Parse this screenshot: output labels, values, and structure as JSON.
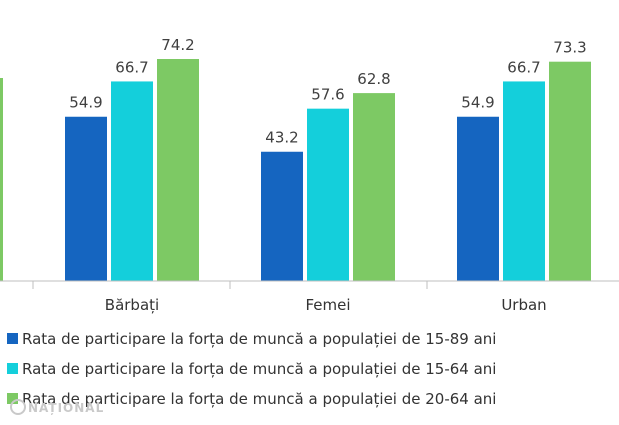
{
  "chart_data": {
    "type": "bar",
    "categories": [
      "",
      "Bărbați",
      "Femei",
      "Urban"
    ],
    "series": [
      {
        "name": "Rata de participare la forța de muncă a populației de 15-89 ani",
        "color": "#1565c0",
        "values": [
          null,
          54.9,
          43.2,
          54.9
        ]
      },
      {
        "name": "Rata de participare la forța de muncă a populației de 15-64 ani",
        "color": "#14cfdb",
        "values": [
          null,
          66.7,
          57.6,
          66.7
        ]
      },
      {
        "name": "Rata de participare la forța de muncă a populației de 20-64 ani",
        "color": "#7dc964",
        "values": [
          null,
          74.2,
          62.8,
          73.3
        ]
      }
    ],
    "xlabel": "",
    "ylabel": "",
    "ylim": [
      0,
      100
    ],
    "grid": false,
    "legend_position": "bottom"
  },
  "watermark": {
    "text": "NAȚIONAL",
    "color": "#c9c9c9"
  },
  "axis": {
    "color": "#bfbfbf"
  }
}
